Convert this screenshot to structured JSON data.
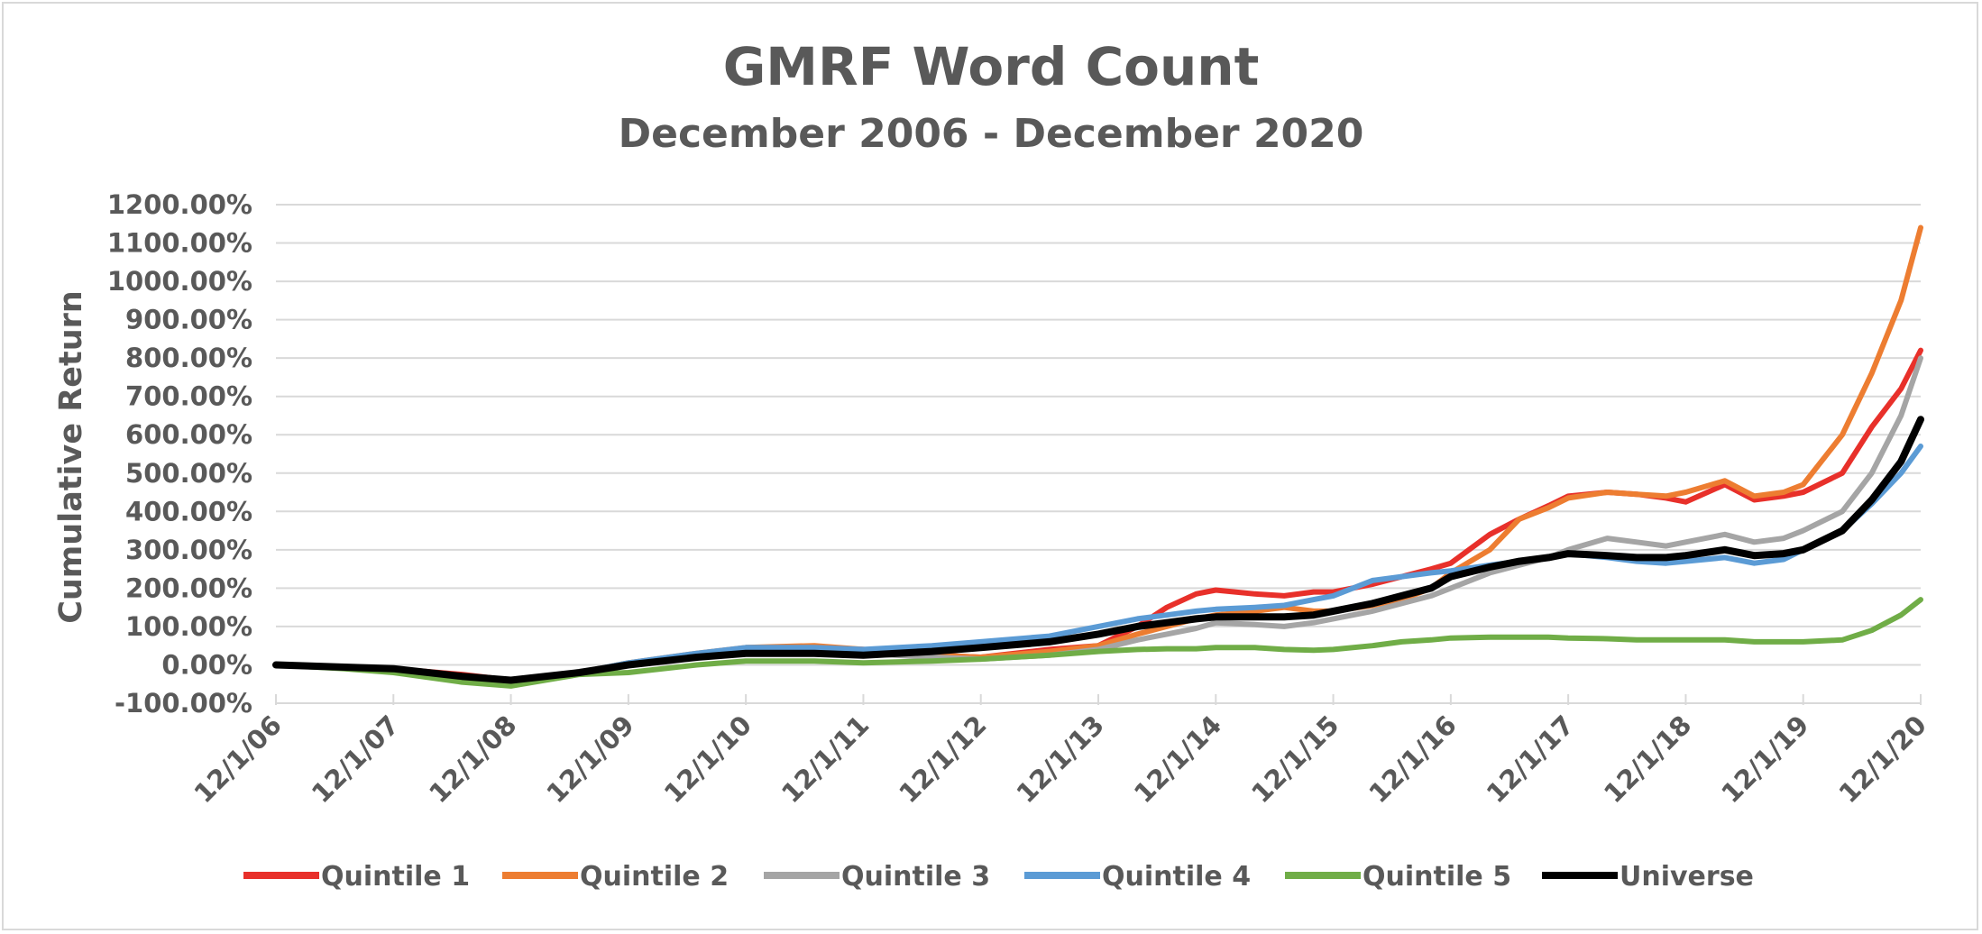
{
  "chart_data": {
    "type": "line",
    "title": "GMRF Word Count",
    "subtitle": "December 2006 - December 2020",
    "ylabel": "Cumulative Return",
    "xlabel": "",
    "ylim": [
      -100,
      1200
    ],
    "y_ticks": [
      "1200.00%",
      "1100.00%",
      "1000.00%",
      "900.00%",
      "800.00%",
      "700.00%",
      "600.00%",
      "500.00%",
      "400.00%",
      "300.00%",
      "200.00%",
      "100.00%",
      "0.00%",
      "-100.00%"
    ],
    "y_tick_values": [
      1200,
      1100,
      1000,
      900,
      800,
      700,
      600,
      500,
      400,
      300,
      200,
      100,
      0,
      -100
    ],
    "x_range": [
      2006.917,
      2020.917
    ],
    "x_ticks": [
      "12/1/06",
      "12/1/07",
      "12/1/08",
      "12/1/09",
      "12/1/10",
      "12/1/11",
      "12/1/12",
      "12/1/13",
      "12/1/14",
      "12/1/15",
      "12/1/16",
      "12/1/17",
      "12/1/18",
      "12/1/19",
      "12/1/20"
    ],
    "x_tick_values": [
      2006.917,
      2007.917,
      2008.917,
      2009.917,
      2010.917,
      2011.917,
      2012.917,
      2013.917,
      2014.917,
      2015.917,
      2016.917,
      2017.917,
      2018.917,
      2019.917,
      2020.917
    ],
    "grid": "horizontal",
    "legend": "bottom",
    "series": [
      {
        "name": "Quintile 1",
        "color": "#e8302a",
        "x": [
          2006.917,
          2007.5,
          2007.917,
          2008.5,
          2008.917,
          2009.5,
          2009.917,
          2010.5,
          2010.917,
          2011.5,
          2011.917,
          2012.5,
          2012.917,
          2013.5,
          2013.917,
          2014.25,
          2014.5,
          2014.75,
          2014.917,
          2015.25,
          2015.5,
          2015.75,
          2015.917,
          2016.25,
          2016.5,
          2016.75,
          2016.917,
          2017.25,
          2017.5,
          2017.75,
          2017.917,
          2018.25,
          2018.5,
          2018.75,
          2018.917,
          2019.25,
          2019.5,
          2019.75,
          2019.917,
          2020.25,
          2020.5,
          2020.75,
          2020.917
        ],
        "y": [
          0,
          -5,
          -10,
          -25,
          -40,
          -20,
          0,
          20,
          35,
          45,
          40,
          25,
          20,
          40,
          50,
          100,
          150,
          185,
          195,
          185,
          180,
          190,
          190,
          210,
          230,
          250,
          265,
          340,
          380,
          415,
          440,
          450,
          445,
          435,
          425,
          470,
          430,
          440,
          450,
          500,
          620,
          720,
          820
        ]
      },
      {
        "name": "Quintile 2",
        "color": "#ed7d31",
        "x": [
          2006.917,
          2007.5,
          2007.917,
          2008.5,
          2008.917,
          2009.5,
          2009.917,
          2010.5,
          2010.917,
          2011.5,
          2011.917,
          2012.5,
          2012.917,
          2013.5,
          2013.917,
          2014.25,
          2014.5,
          2014.75,
          2014.917,
          2015.25,
          2015.5,
          2015.75,
          2015.917,
          2016.25,
          2016.5,
          2016.75,
          2016.917,
          2017.25,
          2017.5,
          2017.75,
          2017.917,
          2018.25,
          2018.5,
          2018.75,
          2018.917,
          2019.25,
          2019.5,
          2019.75,
          2019.917,
          2020.25,
          2020.5,
          2020.75,
          2020.917
        ],
        "y": [
          0,
          -8,
          -12,
          -30,
          -45,
          -20,
          5,
          30,
          45,
          50,
          40,
          25,
          20,
          35,
          50,
          80,
          100,
          120,
          130,
          140,
          150,
          140,
          140,
          155,
          170,
          200,
          240,
          300,
          380,
          410,
          435,
          450,
          445,
          440,
          450,
          480,
          440,
          450,
          470,
          600,
          760,
          950,
          1140
        ]
      },
      {
        "name": "Quintile 3",
        "color": "#a5a5a5",
        "x": [
          2006.917,
          2007.5,
          2007.917,
          2008.5,
          2008.917,
          2009.5,
          2009.917,
          2010.5,
          2010.917,
          2011.5,
          2011.917,
          2012.5,
          2012.917,
          2013.5,
          2013.917,
          2014.25,
          2014.5,
          2014.75,
          2014.917,
          2015.25,
          2015.5,
          2015.75,
          2015.917,
          2016.25,
          2016.5,
          2016.75,
          2016.917,
          2017.25,
          2017.5,
          2017.75,
          2017.917,
          2018.25,
          2018.5,
          2018.75,
          2018.917,
          2019.25,
          2019.5,
          2019.75,
          2019.917,
          2020.25,
          2020.5,
          2020.75,
          2020.917
        ],
        "y": [
          0,
          -8,
          -12,
          -30,
          -45,
          -20,
          5,
          25,
          35,
          35,
          30,
          20,
          15,
          25,
          40,
          65,
          80,
          95,
          110,
          105,
          100,
          110,
          120,
          140,
          160,
          180,
          200,
          240,
          260,
          280,
          300,
          330,
          320,
          310,
          320,
          340,
          320,
          330,
          350,
          400,
          500,
          650,
          800
        ]
      },
      {
        "name": "Quintile 4",
        "color": "#5b9bd5",
        "x": [
          2006.917,
          2007.5,
          2007.917,
          2008.5,
          2008.917,
          2009.5,
          2009.917,
          2010.5,
          2010.917,
          2011.5,
          2011.917,
          2012.5,
          2012.917,
          2013.5,
          2013.917,
          2014.25,
          2014.5,
          2014.75,
          2014.917,
          2015.25,
          2015.5,
          2015.75,
          2015.917,
          2016.25,
          2016.5,
          2016.75,
          2016.917,
          2017.25,
          2017.5,
          2017.75,
          2017.917,
          2018.25,
          2018.5,
          2018.75,
          2018.917,
          2019.25,
          2019.5,
          2019.75,
          2019.917,
          2020.25,
          2020.5,
          2020.75,
          2020.917
        ],
        "y": [
          0,
          -8,
          -12,
          -30,
          -45,
          -20,
          5,
          30,
          45,
          45,
          40,
          50,
          60,
          75,
          100,
          120,
          130,
          140,
          145,
          150,
          155,
          170,
          180,
          220,
          230,
          240,
          245,
          260,
          270,
          280,
          290,
          280,
          270,
          265,
          270,
          280,
          265,
          275,
          300,
          350,
          420,
          500,
          570
        ]
      },
      {
        "name": "Quintile 5",
        "color": "#70ad47",
        "x": [
          2006.917,
          2007.5,
          2007.917,
          2008.5,
          2008.917,
          2009.5,
          2009.917,
          2010.5,
          2010.917,
          2011.5,
          2011.917,
          2012.5,
          2012.917,
          2013.5,
          2013.917,
          2014.25,
          2014.5,
          2014.75,
          2014.917,
          2015.25,
          2015.5,
          2015.75,
          2015.917,
          2016.25,
          2016.5,
          2016.75,
          2016.917,
          2017.25,
          2017.5,
          2017.75,
          2017.917,
          2018.25,
          2018.5,
          2018.75,
          2018.917,
          2019.25,
          2019.5,
          2019.75,
          2019.917,
          2020.25,
          2020.5,
          2020.75,
          2020.917
        ],
        "y": [
          0,
          -10,
          -20,
          -45,
          -55,
          -25,
          -20,
          0,
          10,
          10,
          5,
          10,
          15,
          25,
          35,
          40,
          42,
          42,
          45,
          45,
          40,
          38,
          40,
          50,
          60,
          65,
          70,
          72,
          72,
          72,
          70,
          68,
          65,
          65,
          65,
          65,
          60,
          60,
          60,
          65,
          90,
          130,
          170
        ]
      },
      {
        "name": "Universe",
        "color": "#000000",
        "x": [
          2006.917,
          2007.5,
          2007.917,
          2008.5,
          2008.917,
          2009.5,
          2009.917,
          2010.5,
          2010.917,
          2011.5,
          2011.917,
          2012.5,
          2012.917,
          2013.5,
          2013.917,
          2014.25,
          2014.5,
          2014.75,
          2014.917,
          2015.25,
          2015.5,
          2015.75,
          2015.917,
          2016.25,
          2016.5,
          2016.75,
          2016.917,
          2017.25,
          2017.5,
          2017.75,
          2017.917,
          2018.25,
          2018.5,
          2018.75,
          2018.917,
          2019.25,
          2019.5,
          2019.75,
          2019.917,
          2020.25,
          2020.5,
          2020.75,
          2020.917
        ],
        "y": [
          0,
          -6,
          -10,
          -30,
          -40,
          -20,
          0,
          20,
          30,
          30,
          25,
          35,
          45,
          60,
          80,
          100,
          110,
          120,
          125,
          125,
          125,
          130,
          140,
          160,
          180,
          200,
          230,
          255,
          270,
          280,
          290,
          285,
          280,
          280,
          285,
          300,
          285,
          290,
          300,
          350,
          430,
          530,
          640
        ]
      }
    ]
  }
}
